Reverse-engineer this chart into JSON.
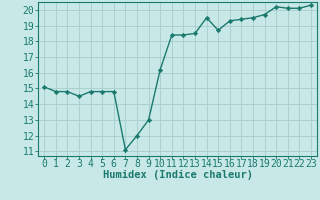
{
  "x": [
    0,
    1,
    2,
    3,
    4,
    5,
    6,
    7,
    8,
    9,
    10,
    11,
    12,
    13,
    14,
    15,
    16,
    17,
    18,
    19,
    20,
    21,
    22,
    23
  ],
  "y": [
    15.1,
    14.8,
    14.8,
    14.5,
    14.8,
    14.8,
    14.8,
    11.1,
    12.0,
    13.0,
    16.2,
    18.4,
    18.4,
    18.5,
    19.5,
    18.7,
    19.3,
    19.4,
    19.5,
    19.7,
    20.2,
    20.1,
    20.1,
    20.3
  ],
  "line_color": "#1a7a6e",
  "marker": "D",
  "marker_size": 2.2,
  "bg_color": "#c8e8e8",
  "grid_color": "#aad0d0",
  "axis_color": "#1a7a6e",
  "xlabel": "Humidex (Indice chaleur)",
  "xlim": [
    -0.5,
    23.5
  ],
  "ylim": [
    10.7,
    20.5
  ],
  "yticks": [
    11,
    12,
    13,
    14,
    15,
    16,
    17,
    18,
    19,
    20
  ],
  "xticks": [
    0,
    1,
    2,
    3,
    4,
    5,
    6,
    7,
    8,
    9,
    10,
    11,
    12,
    13,
    14,
    15,
    16,
    17,
    18,
    19,
    20,
    21,
    22,
    23
  ],
  "font_size": 7.0,
  "xlabel_fontsize": 7.5
}
